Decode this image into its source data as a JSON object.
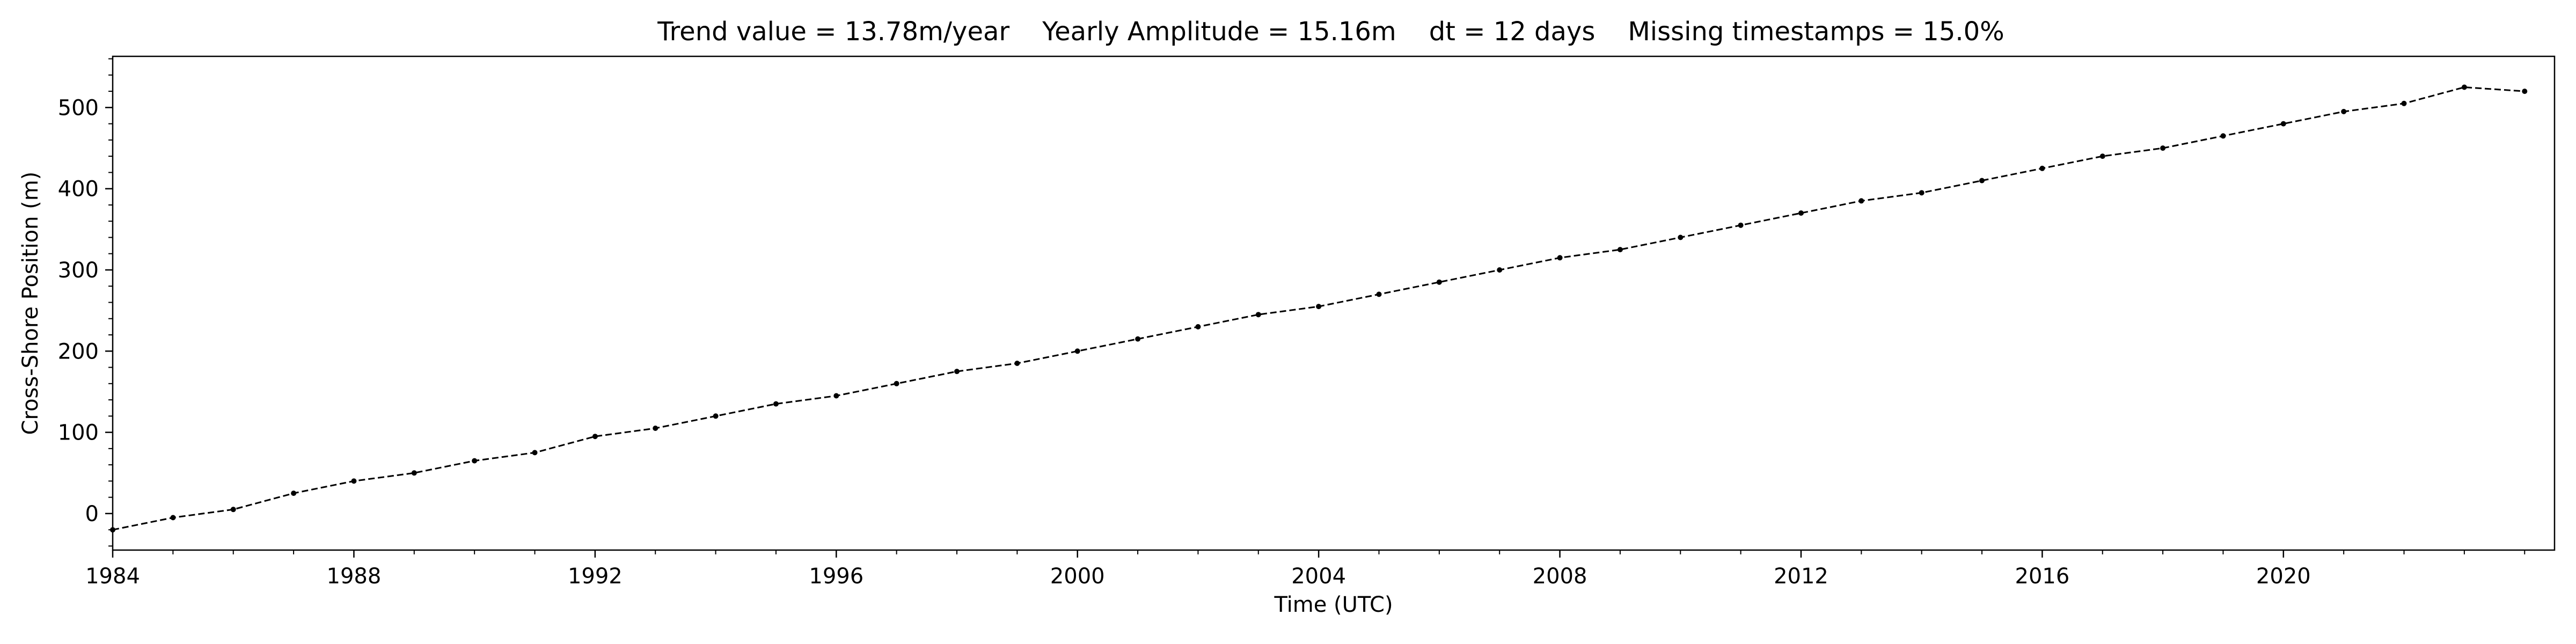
{
  "chart_data": {
    "type": "line",
    "title": "Trend value = 13.78m/year    Yearly Amplitude = 15.16m    dt = 12 days    Missing timestamps = 15.0%",
    "xlabel": "Time (UTC)",
    "ylabel": "Cross-Shore Position (m)",
    "xlim": [
      "1984-01-01",
      "2024-06-30"
    ],
    "ylim": [
      -45,
      563
    ],
    "x_ticks": [
      "1984",
      "1988",
      "1992",
      "1996",
      "2000",
      "2004",
      "2008",
      "2012",
      "2016",
      "2020"
    ],
    "y_ticks": [
      0,
      100,
      200,
      300,
      400,
      500
    ],
    "grid": false,
    "legend": "none",
    "series": [
      {
        "style": "dashed line with dot markers",
        "color": "#000000",
        "x": [
          "1984-01",
          "1985-01",
          "1986-01",
          "1987-01",
          "1988-01",
          "1989-01",
          "1990-01",
          "1991-01",
          "1992-01",
          "1993-01",
          "1994-01",
          "1995-01",
          "1996-01",
          "1997-01",
          "1998-01",
          "1999-01",
          "2000-01",
          "2001-01",
          "2002-01",
          "2003-01",
          "2004-01",
          "2005-01",
          "2006-01",
          "2007-01",
          "2008-01",
          "2009-01",
          "2010-01",
          "2011-01",
          "2012-01",
          "2013-01",
          "2014-01",
          "2015-01",
          "2016-01",
          "2017-01",
          "2018-01",
          "2019-01",
          "2020-01",
          "2021-01",
          "2022-01",
          "2023-01",
          "2024-01"
        ],
        "y": [
          -20,
          -5,
          5,
          25,
          40,
          50,
          65,
          75,
          95,
          105,
          120,
          135,
          145,
          160,
          175,
          185,
          200,
          215,
          230,
          245,
          255,
          270,
          285,
          300,
          315,
          325,
          340,
          355,
          370,
          385,
          395,
          410,
          425,
          440,
          450,
          465,
          480,
          495,
          505,
          525,
          520
        ]
      }
    ]
  }
}
